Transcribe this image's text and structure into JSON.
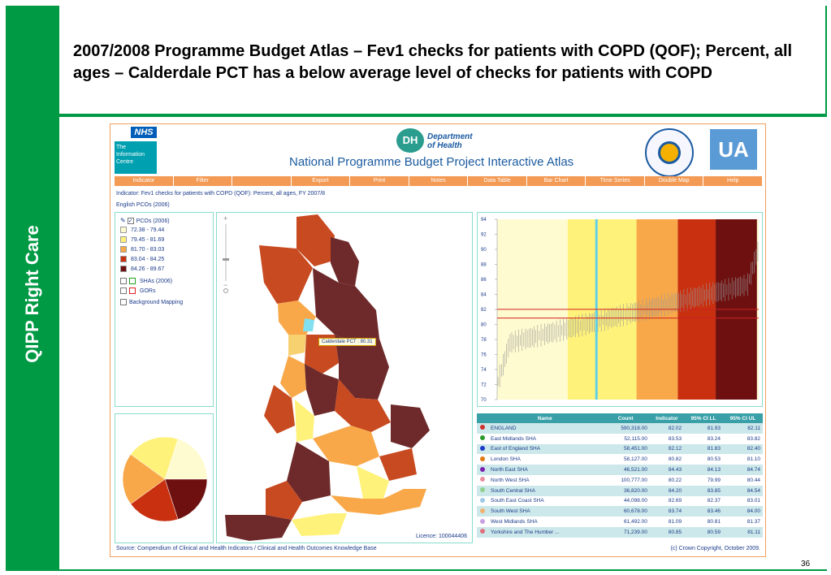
{
  "slide": {
    "sidebar_label": "QIPP Right Care",
    "title": "2007/2008 Programme Budget Atlas – Fev1 checks for patients with COPD (QOF); Percent, all ages – Calderdale PCT has a below average level of checks for patients with COPD",
    "page_number": "36"
  },
  "atlas": {
    "nhs_logo": "NHS",
    "ic_logo": "The Information Centre",
    "dh_logo": "DH",
    "dh_name": "Department of Health",
    "title": "National Programme Budget Project Interactive Atlas",
    "nco_logo_text": "National Centre for Health Outcomes Development",
    "ua_logo": "UA",
    "menu": [
      "Indicator",
      "Filter",
      "",
      "Export",
      "Print",
      "Notes",
      "Data Table",
      "Bar Chart",
      "Time Series",
      "Double Map",
      "Help"
    ],
    "indicator_line": "Indicator: Fev1 checks for patients with COPD (QOF): Percent, all ages, FY 2007/8",
    "geography_line": "English PCOs (2006)",
    "legend": {
      "pcos_label": "PCOs (2006)",
      "classes": [
        {
          "label": "72.38 - 79.44",
          "color": "#fffbd0"
        },
        {
          "label": "79.45 - 81.69",
          "color": "#fff27a"
        },
        {
          "label": "81.70 - 83.03",
          "color": "#f8a848"
        },
        {
          "label": "83.04 - 84.25",
          "color": "#c83010"
        },
        {
          "label": "84.26 - 89.67",
          "color": "#6e1010"
        }
      ],
      "shas_label": "SHAs (2006)",
      "gors_label": "GORs",
      "background_label": "Background Mapping"
    },
    "map": {
      "callout": "Calderdale PCT : 80.31",
      "licence": "Licence: 100044406"
    },
    "table": {
      "headers": [
        "Name",
        "Count",
        "Indicator",
        "95% CI LL",
        "95% CI UL"
      ],
      "rows": [
        {
          "name": "ENGLAND",
          "count": "590,318.00",
          "indicator": "82.02",
          "ll": "81.93",
          "ul": "82.11",
          "dot": "#d03030"
        },
        {
          "name": "East Midlands SHA",
          "count": "52,115.00",
          "indicator": "83.53",
          "ll": "83.24",
          "ul": "83.82",
          "dot": "#2a9a2a"
        },
        {
          "name": "East of England SHA",
          "count": "58,451.00",
          "indicator": "82.12",
          "ll": "81.83",
          "ul": "82.40",
          "dot": "#1a3ac8"
        },
        {
          "name": "London SHA",
          "count": "58,127.00",
          "indicator": "80.82",
          "ll": "80.53",
          "ul": "81.10",
          "dot": "#e07a10"
        },
        {
          "name": "North East SHA",
          "count": "46,521.00",
          "indicator": "84.43",
          "ll": "84.13",
          "ul": "84.74",
          "dot": "#7a20b0"
        },
        {
          "name": "North West SHA",
          "count": "100,777.00",
          "indicator": "80.22",
          "ll": "79.99",
          "ul": "80.44",
          "dot": "#e890a0"
        },
        {
          "name": "South Central SHA",
          "count": "36,820.00",
          "indicator": "84.20",
          "ll": "83.85",
          "ul": "84.54",
          "dot": "#90d090"
        },
        {
          "name": "South East Coast SHA",
          "count": "44,098.00",
          "indicator": "82.69",
          "ll": "82.37",
          "ul": "83.01",
          "dot": "#a0c8e8"
        },
        {
          "name": "South West SHA",
          "count": "60,678.00",
          "indicator": "83.74",
          "ll": "83.46",
          "ul": "84.00",
          "dot": "#f0b070"
        },
        {
          "name": "West Midlands SHA",
          "count": "61,492.00",
          "indicator": "81.09",
          "ll": "80.81",
          "ul": "81.37",
          "dot": "#c8a0e0"
        },
        {
          "name": "Yorkshire and The Humber ...",
          "count": "71,239.00",
          "indicator": "80.85",
          "ll": "80.59",
          "ul": "81.11",
          "dot": "#e07080"
        }
      ]
    },
    "footer_source": "Source: Compendium of Clinical and Health Indicators / Clinical and Health Outcomes Knowledge Base",
    "footer_copyright": "(c) Crown Copyright, October 2009."
  },
  "chart_data": [
    {
      "type": "bar",
      "y_ticks": [
        "94",
        "92",
        "90",
        "88",
        "86",
        "84",
        "82",
        "80",
        "78",
        "76",
        "74",
        "72",
        "70"
      ],
      "ylim": [
        70,
        94
      ],
      "reference_lines": [
        82.02,
        80.85
      ],
      "highlight_value": 80.31,
      "bands": [
        {
          "from": 72.38,
          "to": 79.44,
          "color": "#fffbd0"
        },
        {
          "from": 79.45,
          "to": 81.69,
          "color": "#fff27a"
        },
        {
          "from": 81.7,
          "to": 83.03,
          "color": "#f8a848"
        },
        {
          "from": 83.04,
          "to": 84.25,
          "color": "#c83010"
        },
        {
          "from": 84.26,
          "to": 89.67,
          "color": "#6e1010"
        }
      ]
    },
    {
      "type": "pie",
      "slices": [
        {
          "value": 20,
          "color": "#fffbd0"
        },
        {
          "value": 20,
          "color": "#6e1010"
        },
        {
          "value": 20,
          "color": "#c83010"
        },
        {
          "value": 20,
          "color": "#f8a848"
        },
        {
          "value": 20,
          "color": "#fff27a"
        }
      ]
    }
  ]
}
